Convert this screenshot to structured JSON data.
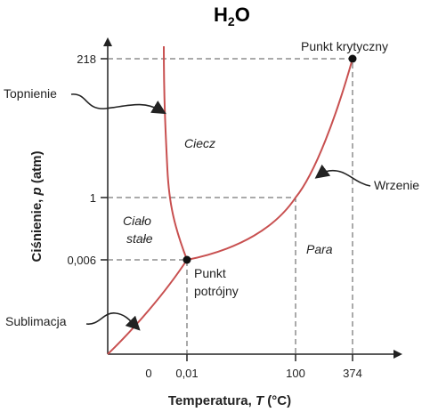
{
  "title": {
    "base": "H",
    "sub": "2",
    "tail": "O"
  },
  "axes": {
    "y_title_prefix": "Ciśnienie, ",
    "y_title_var": "p",
    "y_title_unit": " (atm)",
    "x_title_prefix": "Temperatura, ",
    "x_title_var": "T",
    "x_title_unit": " (°C)"
  },
  "y_ticks": [
    "218",
    "1",
    "0,006"
  ],
  "x_ticks": [
    "0",
    "0,01",
    "100",
    "374"
  ],
  "regions": {
    "liquid": "Ciecz",
    "solid_line1": "Ciało",
    "solid_line2": "stałe",
    "gas": "Para"
  },
  "points": {
    "critical": "Punkt krytyczny",
    "triple_line1": "Punkt",
    "triple_line2": "potrójny"
  },
  "annotations": {
    "melting": "Topnienie",
    "boiling": "Wrzenie",
    "sublimation": "Sublimacja"
  },
  "colors": {
    "curve": "#c85050",
    "axis": "#222222",
    "guide": "#555555"
  }
}
